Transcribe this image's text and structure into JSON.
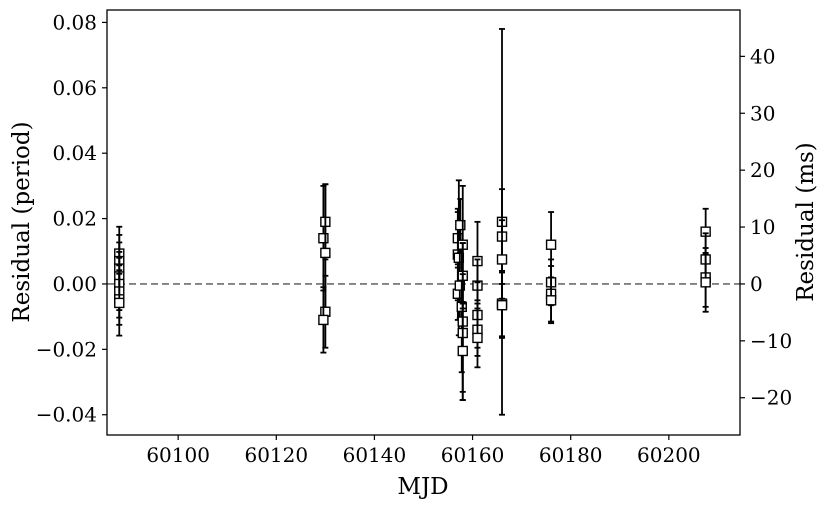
{
  "chart_data": {
    "type": "scatter",
    "xlabel": "MJD",
    "ylabel": "Residual (period)",
    "ylabel_right": "Residual (ms)",
    "xlim": [
      60085.5,
      60214.5
    ],
    "ylim": [
      -0.0462,
      0.0838
    ],
    "ylim_right": [
      -26.55,
      48.15
    ],
    "x_ticks": [
      60100,
      60120,
      60140,
      60160,
      60180,
      60200
    ],
    "y_ticks": [
      -0.04,
      -0.02,
      0.0,
      0.02,
      0.04,
      0.06,
      0.08
    ],
    "y_ticks_right": [
      -20,
      -10,
      0,
      10,
      20,
      30,
      40
    ],
    "x_tick_labels": [
      "60100",
      "60120",
      "60140",
      "60160",
      "60180",
      "60200"
    ],
    "y_tick_labels": [
      "−0.04",
      "−0.02",
      "0.00",
      "0.02",
      "0.04",
      "0.06",
      "0.08"
    ],
    "y_tick_labels_right": [
      "−20",
      "−10",
      "0",
      "10",
      "20",
      "30",
      "40"
    ],
    "reference_line": {
      "y": 0,
      "style": "dashed",
      "color": "#808080"
    },
    "marker": "open-square",
    "grid": false,
    "points": [
      {
        "x": 60088,
        "y": 0.0093,
        "err": 0.0082
      },
      {
        "x": 60088,
        "y": 0.007,
        "err": 0.008
      },
      {
        "x": 60088,
        "y": 0.0047,
        "err": 0.008
      },
      {
        "x": 60088,
        "y": 0.0023,
        "err": 0.0075
      },
      {
        "x": 60088,
        "y": 0.0,
        "err": 0.008
      },
      {
        "x": 60088,
        "y": -0.0023,
        "err": 0.008
      },
      {
        "x": 60088,
        "y": -0.0047,
        "err": 0.0078
      },
      {
        "x": 60088,
        "y": -0.0058,
        "err": 0.01
      },
      {
        "x": 60129.6,
        "y": 0.014,
        "err": 0.016
      },
      {
        "x": 60130,
        "y": 0.019,
        "err": 0.0115
      },
      {
        "x": 60130,
        "y": 0.0095,
        "err": 0.021
      },
      {
        "x": 60130,
        "y": -0.0085,
        "err": 0.011
      },
      {
        "x": 60129.6,
        "y": -0.011,
        "err": 0.01
      },
      {
        "x": 60157,
        "y": 0.014,
        "err": 0.008
      },
      {
        "x": 60157,
        "y": 0.009,
        "err": 0.014
      },
      {
        "x": 60157.2,
        "y": 0.008,
        "err": 0.0237
      },
      {
        "x": 60157,
        "y": -0.003,
        "err": 0.008
      },
      {
        "x": 60157.4,
        "y": -0.0005,
        "err": 0.01
      },
      {
        "x": 60157.5,
        "y": 0.018,
        "err": 0.008
      },
      {
        "x": 60157.8,
        "y": -0.007,
        "err": 0.02
      },
      {
        "x": 60158,
        "y": 0.012,
        "err": 0.018
      },
      {
        "x": 60158,
        "y": 0.0025,
        "err": 0.01
      },
      {
        "x": 60158,
        "y": -0.0115,
        "err": 0.024
      },
      {
        "x": 60158,
        "y": -0.015,
        "err": 0.018
      },
      {
        "x": 60158,
        "y": -0.0205,
        "err": 0.015
      },
      {
        "x": 60161,
        "y": 0.007,
        "err": 0.012
      },
      {
        "x": 60161,
        "y": -0.0005,
        "err": 0.008
      },
      {
        "x": 60161,
        "y": -0.0095,
        "err": 0.01
      },
      {
        "x": 60161,
        "y": -0.014,
        "err": 0.008
      },
      {
        "x": 60161,
        "y": -0.0165,
        "err": 0.009
      },
      {
        "x": 60166,
        "y": 0.019,
        "err": 0.059
      },
      {
        "x": 60166,
        "y": 0.0145,
        "err": 0.0145
      },
      {
        "x": 60166,
        "y": 0.0075,
        "err": 0.012
      },
      {
        "x": 60166,
        "y": -0.006,
        "err": 0.01
      },
      {
        "x": 60166,
        "y": -0.0065,
        "err": 0.01
      },
      {
        "x": 60176,
        "y": 0.012,
        "err": 0.01
      },
      {
        "x": 60176,
        "y": 0.0005,
        "err": 0.007
      },
      {
        "x": 60176,
        "y": -0.003,
        "err": 0.0085
      },
      {
        "x": 60176,
        "y": -0.005,
        "err": 0.007
      },
      {
        "x": 60207.5,
        "y": 0.016,
        "err": 0.007
      },
      {
        "x": 60207.5,
        "y": 0.0075,
        "err": 0.008
      },
      {
        "x": 60207.5,
        "y": 0.002,
        "err": 0.009
      },
      {
        "x": 60207.5,
        "y": 0.0005,
        "err": 0.009
      }
    ]
  }
}
